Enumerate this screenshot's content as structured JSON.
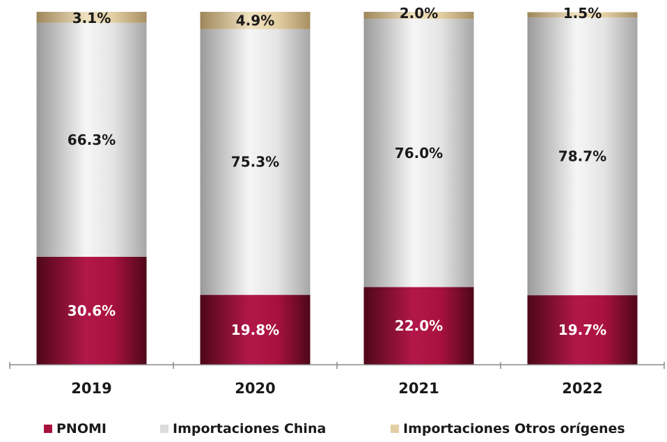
{
  "chart_data": {
    "type": "bar",
    "stacked": true,
    "categories": [
      "2019",
      "2020",
      "2021",
      "2022"
    ],
    "ylim": [
      0,
      100
    ],
    "grid": false,
    "legend_position": "bottom",
    "series": [
      {
        "name": "PNOMI",
        "values": [
          30.6,
          19.8,
          22.0,
          19.7
        ],
        "labels": [
          "30.6%",
          "19.8%",
          "22.0%",
          "19.7%"
        ],
        "color": "#a8113f"
      },
      {
        "name": "Importaciones China",
        "values": [
          66.3,
          75.3,
          76.0,
          78.7
        ],
        "labels": [
          "66.3%",
          "75.3%",
          "76.0%",
          "78.7%"
        ],
        "color": "#dcdcdc"
      },
      {
        "name": "Importaciones Otros orígenes",
        "values": [
          3.1,
          4.9,
          2.0,
          1.5
        ],
        "labels": [
          "3.1%",
          "4.9%",
          "2.0%",
          "1.5%"
        ],
        "color": "#e3cfa4"
      }
    ]
  }
}
